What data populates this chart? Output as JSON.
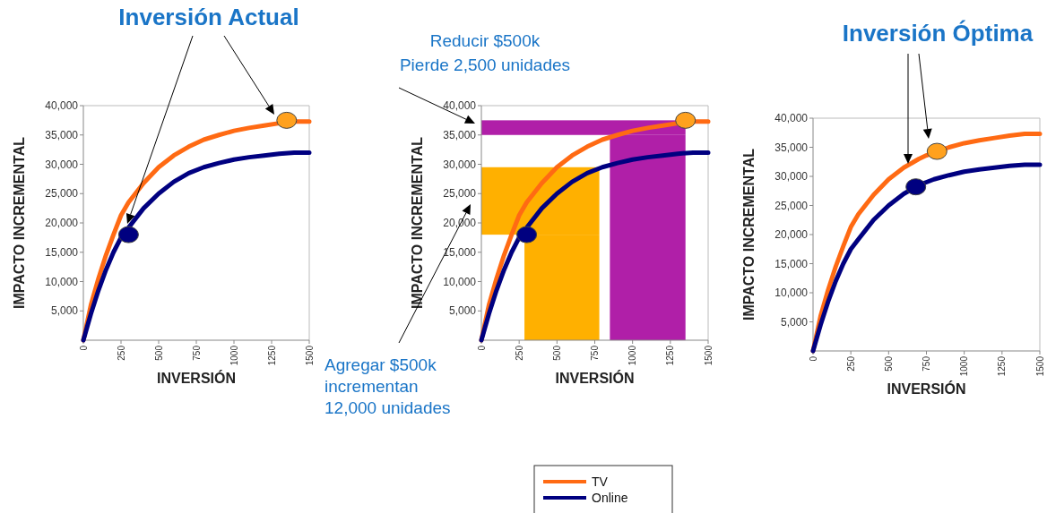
{
  "chart_data": [
    {
      "type": "line",
      "title": "Inversión Actual",
      "xlabel": "INVERSIÓN",
      "ylabel": "IMPACTO INCREMENTAL",
      "xlim": [
        0,
        1500
      ],
      "ylim": [
        0,
        40000
      ],
      "xticks": [
        0,
        250,
        500,
        750,
        1000,
        1250,
        1500
      ],
      "yticks": [
        {
          "value": 5000,
          "label": "5,000"
        },
        {
          "value": 10000,
          "label": "10,000"
        },
        {
          "value": 15000,
          "label": "15,000"
        },
        {
          "value": 20000,
          "label": "20,000"
        },
        {
          "value": 25000,
          "label": "25,000"
        },
        {
          "value": 30000,
          "label": "30,000"
        },
        {
          "value": 35000,
          "label": "35,000"
        },
        {
          "value": 40000,
          "label": "40,000"
        }
      ],
      "grid": false,
      "legend": false,
      "line_style": "solid",
      "x": [
        0,
        50,
        100,
        150,
        200,
        250,
        300,
        400,
        500,
        600,
        700,
        800,
        900,
        1000,
        1100,
        1200,
        1300,
        1400,
        1500
      ],
      "series": [
        {
          "color": "#ff6a13",
          "values": [
            0,
            6000,
            10500,
            14500,
            18000,
            21300,
            23500,
            26800,
            29500,
            31500,
            33000,
            34200,
            35000,
            35700,
            36200,
            36600,
            37000,
            37300,
            37300
          ]
        },
        {
          "color": "#000080",
          "values": [
            0,
            4500,
            8500,
            12000,
            15000,
            17500,
            19200,
            22500,
            25000,
            27000,
            28500,
            29500,
            30200,
            30800,
            31200,
            31500,
            31800,
            32000,
            32000
          ]
        },
        {
          "type": "scatter",
          "marker": "circle",
          "color": "#000080",
          "x": [
            300
          ],
          "values": [
            18000
          ]
        },
        {
          "type": "scatter",
          "marker": "circle",
          "color": "#ffa11e",
          "x": [
            1350
          ],
          "values": [
            37500
          ]
        }
      ]
    },
    {
      "type": "line",
      "xlabel": "INVERSIÓN",
      "ylabel": "IMPACTO INCREMENTAL",
      "xlim": [
        0,
        1500
      ],
      "ylim": [
        0,
        40000
      ],
      "xticks": [
        0,
        250,
        500,
        750,
        1000,
        1250,
        1500
      ],
      "yticks": [
        {
          "value": 5000,
          "label": "5,000"
        },
        {
          "value": 10000,
          "label": "10,000"
        },
        {
          "value": 15000,
          "label": "15,000"
        },
        {
          "value": 20000,
          "label": "20,000"
        },
        {
          "value": 25000,
          "label": "25,000"
        },
        {
          "value": 30000,
          "label": "30,000"
        },
        {
          "value": 35000,
          "label": "35,000"
        },
        {
          "value": 40000,
          "label": "40,000"
        }
      ],
      "grid": false,
      "legend": "bottom",
      "line_style": "solid",
      "annotations": [
        "Reducir $500k\nPierde 2,500 unidades",
        "Agregar $500k\nincrementan\n12,000 unidades"
      ],
      "bands": [
        {
          "axis": "y",
          "from": 18000,
          "to": 29500,
          "color": "#ffb000"
        },
        {
          "axis": "x",
          "from": 285,
          "to": 780,
          "color": "#ffb000"
        },
        {
          "axis": "y",
          "from": 35000,
          "to": 37500,
          "color": "#b01fa8"
        },
        {
          "axis": "x",
          "from": 850,
          "to": 1350,
          "color": "#b01fa8"
        }
      ],
      "x": [
        0,
        50,
        100,
        150,
        200,
        250,
        300,
        400,
        500,
        600,
        700,
        800,
        900,
        1000,
        1100,
        1200,
        1300,
        1400,
        1500
      ],
      "series": [
        {
          "name": "TV",
          "color": "#ff6a13",
          "values": [
            0,
            6000,
            10500,
            14500,
            18000,
            21300,
            23500,
            26800,
            29500,
            31500,
            33000,
            34200,
            35000,
            35700,
            36200,
            36600,
            37000,
            37300,
            37300
          ]
        },
        {
          "name": "Online",
          "color": "#000080",
          "values": [
            0,
            4500,
            8500,
            12000,
            15000,
            17500,
            19200,
            22500,
            25000,
            27000,
            28500,
            29500,
            30200,
            30800,
            31200,
            31500,
            31800,
            32000,
            32000
          ]
        },
        {
          "type": "scatter",
          "marker": "circle",
          "color": "#000080",
          "x": [
            300
          ],
          "values": [
            18000
          ]
        },
        {
          "type": "scatter",
          "marker": "circle",
          "color": "#ffa11e",
          "x": [
            1350
          ],
          "values": [
            37500
          ]
        }
      ]
    },
    {
      "type": "line",
      "title": "Inversión Óptima",
      "xlabel": "INVERSIÓN",
      "ylabel": "IMPACTO INCREMENTAL",
      "xlim": [
        0,
        1500
      ],
      "ylim": [
        0,
        40000
      ],
      "xticks": [
        0,
        250,
        500,
        750,
        1000,
        1250,
        1500
      ],
      "yticks": [
        {
          "value": 5000,
          "label": "5,000"
        },
        {
          "value": 10000,
          "label": "10,000"
        },
        {
          "value": 15000,
          "label": "15,000"
        },
        {
          "value": 20000,
          "label": "20,000"
        },
        {
          "value": 25000,
          "label": "25,000"
        },
        {
          "value": 30000,
          "label": "30,000"
        },
        {
          "value": 35000,
          "label": "35,000"
        },
        {
          "value": 40000,
          "label": "40,000"
        }
      ],
      "grid": false,
      "legend": false,
      "line_style": "solid",
      "x": [
        0,
        50,
        100,
        150,
        200,
        250,
        300,
        400,
        500,
        600,
        700,
        800,
        900,
        1000,
        1100,
        1200,
        1300,
        1400,
        1500
      ],
      "series": [
        {
          "color": "#ff6a13",
          "x": [
            0,
            50,
            100,
            150,
            200,
            250,
            300,
            400,
            500,
            600,
            700,
            750,
            900,
            1000,
            1100,
            1200,
            1300,
            1400,
            1500
          ],
          "values": [
            0,
            6000,
            10500,
            14500,
            18000,
            21300,
            23500,
            26800,
            29500,
            31500,
            33000,
            33600,
            35000,
            35700,
            36200,
            36600,
            37000,
            37300,
            37300
          ]
        },
        {
          "color": "#000080",
          "values": [
            0,
            4500,
            8500,
            12000,
            15000,
            17500,
            19200,
            22500,
            25000,
            27000,
            28500,
            29500,
            30200,
            30800,
            31200,
            31500,
            31800,
            32000,
            32000
          ]
        },
        {
          "type": "scatter",
          "marker": "circle",
          "color": "#000080",
          "x": [
            680
          ],
          "values": [
            28200
          ]
        },
        {
          "type": "scatter",
          "marker": "circle",
          "color": "#ffa11e",
          "x": [
            820
          ],
          "values": [
            34300
          ]
        }
      ]
    }
  ]
}
